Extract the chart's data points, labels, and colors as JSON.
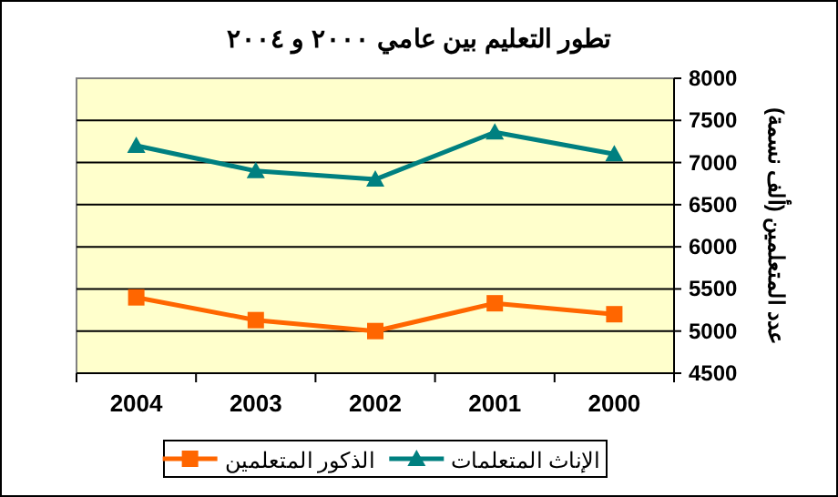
{
  "chart_data": {
    "type": "line",
    "title": "تطور التعليم بين عامي ٢٠٠٠ و ٢٠٠٤",
    "ylabel": "عدد المتعلمين (ألف نسمة)",
    "categories": [
      "2004",
      "2003",
      "2002",
      "2001",
      "2000"
    ],
    "series": [
      {
        "name": "الإناث المتعلمات",
        "color": "#008080",
        "marker": "triangle",
        "values": [
          7200,
          6900,
          6800,
          7360,
          7100
        ]
      },
      {
        "name": "الذكور المتعلمين",
        "color": "#ff6600",
        "marker": "square",
        "values": [
          5400,
          5130,
          5000,
          5330,
          5200
        ]
      }
    ],
    "ylim": [
      4500,
      8000
    ],
    "yticks": [
      4500,
      5000,
      5500,
      6000,
      6500,
      7000,
      7500,
      8000
    ],
    "grid": "y",
    "legend": "bottom"
  }
}
